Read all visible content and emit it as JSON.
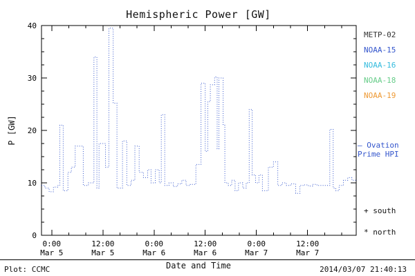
{
  "chart_data": {
    "type": "line",
    "title": "Hemispheric Power [GW]",
    "xlabel": "Date and Time",
    "ylabel": "P [GW]",
    "ylim": [
      0,
      40
    ],
    "xlim_hours": [
      -2.4,
      71.4
    ],
    "x_axis_note": "hours relative to first 0:00 Mar 5 tick",
    "grid": false,
    "line_style": "dotted-step",
    "line_color": "#3355cc",
    "y_ticks": [
      0,
      10,
      20,
      30,
      40
    ],
    "x_ticks": [
      {
        "hour": 0,
        "time": "0:00",
        "date": "Mar 5"
      },
      {
        "hour": 12,
        "time": "12:00",
        "date": "Mar 5"
      },
      {
        "hour": 24,
        "time": "0:00",
        "date": "Mar 6"
      },
      {
        "hour": 36,
        "time": "12:00",
        "date": "Mar 6"
      },
      {
        "hour": 48,
        "time": "0:00",
        "date": "Mar 7"
      },
      {
        "hour": 60,
        "time": "12:00",
        "date": "Mar 7"
      }
    ],
    "series": [
      {
        "name": "Ovation Prime HPI",
        "x_hours": [
          -2.4,
          -1.6,
          -0.6,
          0.4,
          1.4,
          1.9,
          2.7,
          3.8,
          4.6,
          5.5,
          7.4,
          8.6,
          9.9,
          10.6,
          11.1,
          12.6,
          13.4,
          14.4,
          15.3,
          16.6,
          17.6,
          18.6,
          19.5,
          20.5,
          21.5,
          22.5,
          23.3,
          24.3,
          25.2,
          25.7,
          26.5,
          27.5,
          28.5,
          29.5,
          30.5,
          31.5,
          32.5,
          33.8,
          35.0,
          36.0,
          36.6,
          37.2,
          38.2,
          38.8,
          39.2,
          40.2,
          40.6,
          41.4,
          42.2,
          43.0,
          43.8,
          44.8,
          45.6,
          46.3,
          47.0,
          47.8,
          48.6,
          49.4,
          50.8,
          52.0,
          53.0,
          54.0,
          55.0,
          56.0,
          57.2,
          58.2,
          59.2,
          60.2,
          61.2,
          62.2,
          63.2,
          64.2,
          65.2,
          66.0,
          66.6,
          67.4,
          68.4,
          69.4,
          70.4
        ],
        "values": [
          9.5,
          9.0,
          8.3,
          9.2,
          9.5,
          21.0,
          8.5,
          12.0,
          13.0,
          17.0,
          9.5,
          10.0,
          34.0,
          9.0,
          17.5,
          13.0,
          39.5,
          25.2,
          9.0,
          18.0,
          9.5,
          10.5,
          17.0,
          12.0,
          11.0,
          12.5,
          10.0,
          12.5,
          10.0,
          23.0,
          9.5,
          10.0,
          9.3,
          9.8,
          10.5,
          9.5,
          9.7,
          13.5,
          29.0,
          16.0,
          25.5,
          28.7,
          30.2,
          16.5,
          30.0,
          21.0,
          10.0,
          9.5,
          10.5,
          8.5,
          10.0,
          9.0,
          10.0,
          24.0,
          11.5,
          10.0,
          11.5,
          8.5,
          13.0,
          14.0,
          9.5,
          10.0,
          9.5,
          9.8,
          8.0,
          9.5,
          9.6,
          9.4,
          9.7,
          9.5,
          9.5,
          9.5,
          20.2,
          9.0,
          8.5,
          9.5,
          10.5,
          11.0,
          10.5
        ]
      }
    ]
  },
  "legend": {
    "items": [
      {
        "label": "METP-02",
        "color": "#333333"
      },
      {
        "label": "NOAA-15",
        "color": "#3355cc"
      },
      {
        "label": "NOAA-16",
        "color": "#33bbdd"
      },
      {
        "label": "NOAA-18",
        "color": "#66cc88"
      },
      {
        "label": "NOAA-19",
        "color": "#ee9933"
      }
    ]
  },
  "ovation": {
    "line1": "– Ovation",
    "line2": "Prime HPI",
    "color": "#3355cc"
  },
  "markers": {
    "south": "+ south",
    "north": "* north"
  },
  "footer": {
    "left": "Plot: CCMC",
    "right": "2014/03/07 21:40:13"
  }
}
